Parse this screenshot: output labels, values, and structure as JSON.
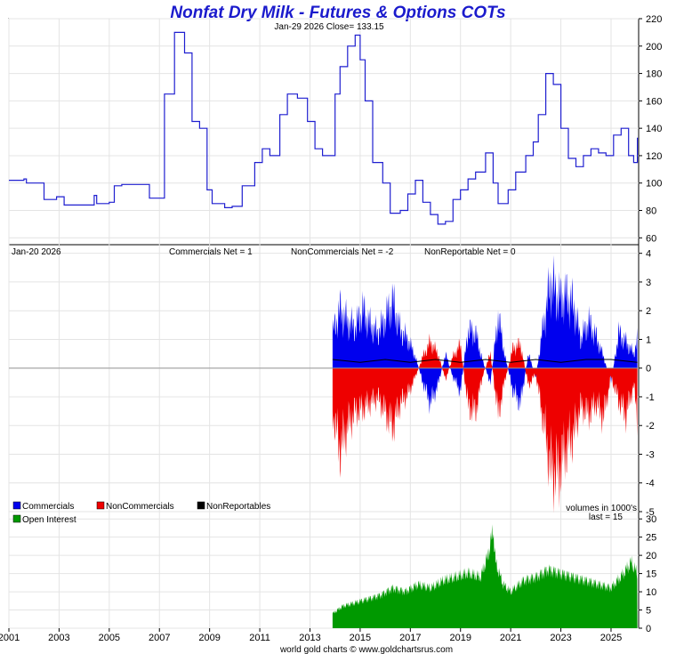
{
  "chart_data": {
    "type": "line",
    "title": "Nonfat Dry Milk - Futures & Options COTs",
    "footer": "world gold charts © www.goldchartsrus.com",
    "x_ticks": [
      "2001",
      "2003",
      "2005",
      "2007",
      "2009",
      "2011",
      "2013",
      "2015",
      "2017",
      "2019",
      "2021",
      "2023",
      "2025"
    ],
    "x_range": [
      2001.0,
      2026.1
    ],
    "price_panel": {
      "header": "Jan-29  2026    Close= 133.15",
      "ylim": [
        55,
        220
      ],
      "y_ticks": [
        60,
        80,
        100,
        120,
        140,
        160,
        180,
        200,
        220
      ],
      "series": [
        {
          "name": "Price",
          "color": "#1f1fd0",
          "x": [
            2001.0,
            2001.6,
            2001.7,
            2002.3,
            2002.4,
            2002.9,
            2003.2,
            2004.2,
            2004.4,
            2004.5,
            2005.0,
            2005.2,
            2005.5,
            2006.0,
            2006.6,
            2007.0,
            2007.2,
            2007.6,
            2008.0,
            2008.3,
            2008.6,
            2008.9,
            2009.1,
            2009.6,
            2009.9,
            2010.3,
            2010.8,
            2011.1,
            2011.4,
            2011.8,
            2012.1,
            2012.5,
            2012.9,
            2013.2,
            2013.5,
            2014.0,
            2014.2,
            2014.5,
            2014.8,
            2015.0,
            2015.2,
            2015.5,
            2015.9,
            2016.2,
            2016.6,
            2016.9,
            2017.2,
            2017.5,
            2017.8,
            2018.1,
            2018.4,
            2018.7,
            2019.0,
            2019.3,
            2019.6,
            2020.0,
            2020.3,
            2020.5,
            2020.9,
            2021.2,
            2021.6,
            2021.9,
            2022.1,
            2022.4,
            2022.7,
            2023.0,
            2023.3,
            2023.6,
            2023.9,
            2024.2,
            2024.5,
            2024.8,
            2025.1,
            2025.4,
            2025.7,
            2025.9,
            2026.05
          ],
          "y": [
            102,
            103,
            100,
            100,
            88,
            90,
            84,
            84,
            91,
            85,
            86,
            98,
            99,
            99,
            89,
            89,
            165,
            210,
            195,
            145,
            140,
            95,
            85,
            82,
            83,
            98,
            115,
            125,
            120,
            150,
            165,
            162,
            145,
            125,
            120,
            165,
            185,
            200,
            208,
            190,
            160,
            115,
            100,
            78,
            80,
            92,
            102,
            86,
            77,
            70,
            72,
            88,
            95,
            103,
            108,
            122,
            100,
            85,
            95,
            108,
            120,
            130,
            150,
            180,
            172,
            140,
            118,
            112,
            120,
            125,
            122,
            120,
            135,
            140,
            120,
            115,
            133.15
          ]
        }
      ]
    },
    "cot_panel": {
      "header_date": "Jan-20  2026",
      "commercials_net": "Commercials Net = 1",
      "noncommercials_net": "NonCommercials Net = -2",
      "nonreportable_net": "NonReportable Net = 0",
      "units_note": "volumes in 1000's",
      "ylim": [
        -5,
        4.3
      ],
      "y_ticks": [
        4,
        3,
        2,
        1,
        0,
        -1,
        -2,
        -3,
        -4,
        -5
      ],
      "series": [
        {
          "name": "Commercials",
          "color": "#0000ee",
          "x": [
            2013.9,
            2014.2,
            2014.5,
            2014.8,
            2015.1,
            2015.4,
            2015.7,
            2016.0,
            2016.3,
            2016.6,
            2016.9,
            2017.2,
            2017.5,
            2017.8,
            2018.1,
            2018.4,
            2018.7,
            2019.0,
            2019.3,
            2019.6,
            2019.9,
            2020.2,
            2020.5,
            2020.8,
            2021.1,
            2021.4,
            2021.7,
            2022.0,
            2022.3,
            2022.6,
            2022.9,
            2023.2,
            2023.5,
            2023.8,
            2024.1,
            2024.4,
            2024.7,
            2025.0,
            2025.3,
            2025.6,
            2025.9,
            2026.05
          ],
          "y": [
            1.2,
            2.0,
            1.6,
            1.4,
            2.0,
            1.5,
            1.2,
            1.7,
            2.3,
            1.3,
            1.0,
            0.4,
            -0.5,
            -1.2,
            -0.6,
            0.5,
            -0.3,
            -0.8,
            1.3,
            1.2,
            0.2,
            -0.5,
            1.8,
            0.3,
            -0.8,
            -1.2,
            0.5,
            -0.3,
            1.5,
            3.0,
            2.4,
            2.5,
            2.2,
            1.0,
            1.6,
            1.1,
            0.4,
            -0.5,
            1.2,
            0.9,
            0.5,
            1.0
          ]
        },
        {
          "name": "NonCommercials",
          "color": "#ee0000",
          "x": [
            2013.9,
            2014.2,
            2014.5,
            2014.8,
            2015.1,
            2015.4,
            2015.7,
            2016.0,
            2016.3,
            2016.6,
            2016.9,
            2017.2,
            2017.5,
            2017.8,
            2018.1,
            2018.4,
            2018.7,
            2019.0,
            2019.3,
            2019.6,
            2019.9,
            2020.2,
            2020.5,
            2020.8,
            2021.1,
            2021.4,
            2021.7,
            2022.0,
            2022.3,
            2022.6,
            2022.9,
            2023.2,
            2023.5,
            2023.8,
            2024.1,
            2024.4,
            2024.7,
            2025.0,
            2025.3,
            2025.6,
            2025.9,
            2026.05
          ],
          "y": [
            -1.5,
            -2.8,
            -2.0,
            -1.5,
            -1.4,
            -1.2,
            -1.0,
            -1.5,
            -2.0,
            -1.2,
            -0.9,
            -0.3,
            0.4,
            0.9,
            0.5,
            -0.4,
            0.4,
            0.8,
            -1.3,
            -1.5,
            -0.2,
            0.5,
            -1.6,
            -0.3,
            0.7,
            0.8,
            -0.6,
            -0.2,
            -1.8,
            -3.5,
            -3.6,
            -2.8,
            -2.3,
            -1.3,
            -1.6,
            -1.2,
            -1.7,
            -0.3,
            -1.1,
            -1.6,
            -0.6,
            -1.7
          ]
        },
        {
          "name": "NonReportables",
          "color": "#000000",
          "x": [
            2013.9,
            2015.0,
            2016.0,
            2017.0,
            2018.0,
            2019.0,
            2020.0,
            2021.0,
            2022.0,
            2023.0,
            2024.0,
            2025.0,
            2026.05
          ],
          "y": [
            0.3,
            0.2,
            0.3,
            0.2,
            0.3,
            0.2,
            0.3,
            0.2,
            0.3,
            0.2,
            0.3,
            0.3,
            0.2
          ]
        }
      ]
    },
    "oi_panel": {
      "legend": "Open Interest",
      "last_note": "last = 15",
      "ylim": [
        0,
        32
      ],
      "y_ticks": [
        30,
        25,
        20,
        15,
        10,
        5,
        0
      ],
      "series": [
        {
          "name": "Open Interest",
          "color": "#009900",
          "x": [
            2013.9,
            2014.3,
            2014.8,
            2015.3,
            2015.8,
            2016.3,
            2016.8,
            2017.3,
            2017.8,
            2018.3,
            2018.8,
            2019.3,
            2019.8,
            2020.1,
            2020.3,
            2020.4,
            2020.7,
            2021.0,
            2021.5,
            2022.0,
            2022.5,
            2023.0,
            2023.5,
            2024.0,
            2024.5,
            2025.0,
            2025.5,
            2025.8,
            2026.05
          ],
          "y": [
            4,
            6,
            7,
            8,
            9,
            11,
            10,
            12,
            11,
            13,
            14,
            15,
            14,
            20,
            27,
            18,
            12,
            10,
            13,
            14,
            16,
            15,
            14,
            13,
            12,
            11,
            15,
            18,
            15
          ]
        }
      ]
    }
  }
}
